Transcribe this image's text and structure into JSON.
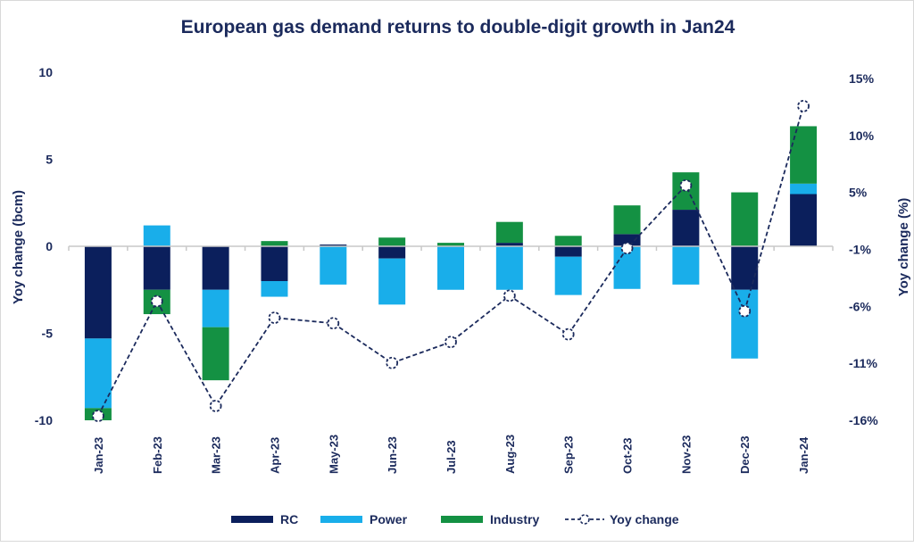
{
  "chart_data": {
    "type": "bar",
    "title": "European gas demand returns to double-digit growth in Jan24",
    "ylabel": "Yoy change (bcm)",
    "y2label": "Yoy change (%)",
    "ylim": [
      -10,
      10
    ],
    "yticks": [
      "10",
      "5",
      "0",
      "-5",
      "-10"
    ],
    "ytick_values": [
      10,
      5,
      0,
      -5,
      -10
    ],
    "y2lim": [
      -16,
      15
    ],
    "y2ticks": [
      "15%",
      "10%",
      "5%",
      "-1%",
      "-6%",
      "-11%",
      "-16%"
    ],
    "grid": false,
    "legend_position": "bottom",
    "categories": [
      "Jan-23",
      "Feb-23",
      "Mar-23",
      "Apr-23",
      "May-23",
      "Jun-23",
      "Jul-23",
      "Aug-23",
      "Sep-23",
      "Oct-23",
      "Nov-23",
      "Dec-23",
      "Jan-24"
    ],
    "series": [
      {
        "name": "RC",
        "kind": "stacked-bar",
        "color": "#0b1f5c",
        "values": [
          -5.3,
          -2.5,
          -2.5,
          -2.0,
          0.1,
          -0.7,
          0.0,
          0.2,
          -0.6,
          0.7,
          2.1,
          -2.5,
          3.0
        ]
      },
      {
        "name": "Power",
        "kind": "stacked-bar",
        "color": "#19aeea",
        "values": [
          -4.0,
          1.2,
          -2.15,
          -0.9,
          -2.2,
          -2.65,
          -2.5,
          -2.5,
          -2.2,
          -2.45,
          -2.2,
          -3.95,
          0.6
        ]
      },
      {
        "name": "Industry",
        "kind": "stacked-bar",
        "color": "#149143",
        "values": [
          -0.7,
          -1.4,
          -3.05,
          0.3,
          0.0,
          0.5,
          0.2,
          1.2,
          0.6,
          1.65,
          2.15,
          3.1,
          3.3
        ]
      },
      {
        "name": "Yoy change",
        "kind": "line",
        "axis": "secondary",
        "color": "#1b2a5c",
        "values": [
          -15.6,
          -5.2,
          -14.7,
          -6.7,
          -7.2,
          -10.8,
          -8.9,
          -4.7,
          -8.2,
          -0.4,
          5.3,
          -6.1,
          12.5
        ]
      }
    ]
  }
}
